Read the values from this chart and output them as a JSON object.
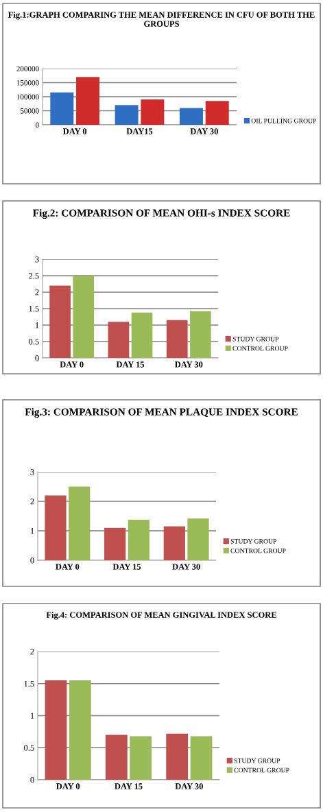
{
  "chart_data": [
    {
      "type": "bar",
      "title": "Fig.1:GRAPH COMPARING THE MEAN DIFFERENCE IN CFU OF BOTH THE GROUPS",
      "categories": [
        "DAY 0",
        "DAY15",
        "DAY 30"
      ],
      "series": [
        {
          "name": "OIL PULLING GROUP",
          "color": "#2e6fc4",
          "values": [
            115000,
            70000,
            60000
          ]
        },
        {
          "color": "#d22b2b",
          "values": [
            170000,
            90000,
            85000
          ]
        }
      ],
      "ylim": [
        0,
        200000
      ],
      "yticks": [
        0,
        50000,
        100000,
        150000,
        200000
      ],
      "grid": "y",
      "legend": "bottom right"
    },
    {
      "type": "bar",
      "title": "Fig.2: COMPARISON OF MEAN OHI-s INDEX SCORE",
      "categories": [
        "DAY 0",
        "DAY 15",
        "DAY 30"
      ],
      "series": [
        {
          "name": "STUDY GROUP",
          "color": "#c0504d",
          "values": [
            2.2,
            1.1,
            1.15
          ]
        },
        {
          "name": "CONTROL GROUP",
          "color": "#9bbb59",
          "values": [
            2.5,
            1.38,
            1.42
          ]
        }
      ],
      "ylim": [
        0,
        3
      ],
      "yticks": [
        0,
        0.5,
        1,
        1.5,
        2,
        2.5,
        3
      ],
      "grid": "y",
      "legend": "bottom right"
    },
    {
      "type": "bar",
      "title": "Fig.3: COMPARISON OF MEAN PLAQUE INDEX SCORE",
      "categories": [
        "DAY 0",
        "DAY 15",
        "DAY 30"
      ],
      "series": [
        {
          "name": "STUDY GROUP",
          "color": "#c0504d",
          "values": [
            2.2,
            1.1,
            1.15
          ]
        },
        {
          "name": "CONTROL GROUP",
          "color": "#9bbb59",
          "values": [
            2.5,
            1.38,
            1.42
          ]
        }
      ],
      "ylim": [
        0,
        3
      ],
      "yticks": [
        0,
        1,
        2,
        3
      ],
      "grid": "y",
      "legend": "bottom right"
    },
    {
      "type": "bar",
      "title": "Fig.4: COMPARISON OF MEAN GINGIVAL INDEX SCORE",
      "categories": [
        "DAY 0",
        "DAY 15",
        "DAY 30"
      ],
      "series": [
        {
          "name": "STUDY GROUP",
          "color": "#c0504d",
          "values": [
            1.55,
            0.7,
            0.72
          ]
        },
        {
          "name": "CONTROL GROUP",
          "color": "#9bbb59",
          "values": [
            1.55,
            0.68,
            0.68
          ]
        }
      ],
      "ylim": [
        0,
        2
      ],
      "yticks": [
        0,
        0.5,
        1,
        1.5,
        2
      ],
      "grid": "y",
      "legend": "bottom right"
    }
  ]
}
